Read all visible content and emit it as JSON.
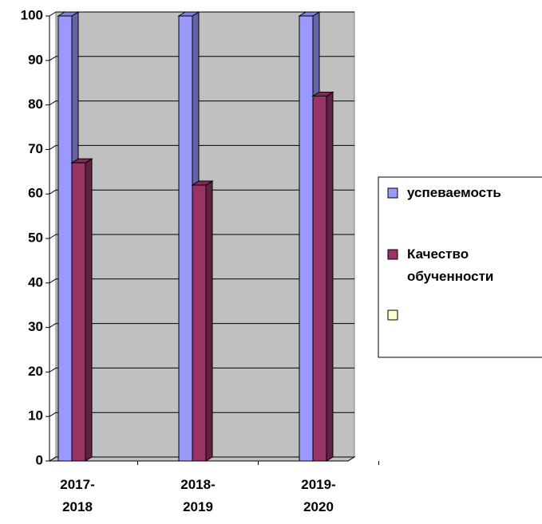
{
  "chart_data": {
    "type": "bar",
    "categories": [
      "2017-2018",
      "2018-2019",
      "2019-2020"
    ],
    "series": [
      {
        "name": "успеваемость",
        "color": "#9999ff",
        "values": [
          100,
          100,
          100
        ]
      },
      {
        "name": "Качество обученности",
        "color": "#993366",
        "values": [
          67,
          62,
          82
        ]
      },
      {
        "name": null,
        "color": "#ffffcc",
        "values": [
          null,
          null,
          null
        ]
      }
    ],
    "ylim": [
      0,
      100
    ],
    "yticks": [
      0,
      10,
      20,
      30,
      40,
      50,
      60,
      70,
      80,
      90,
      100
    ],
    "grid": true,
    "legend": "right"
  }
}
